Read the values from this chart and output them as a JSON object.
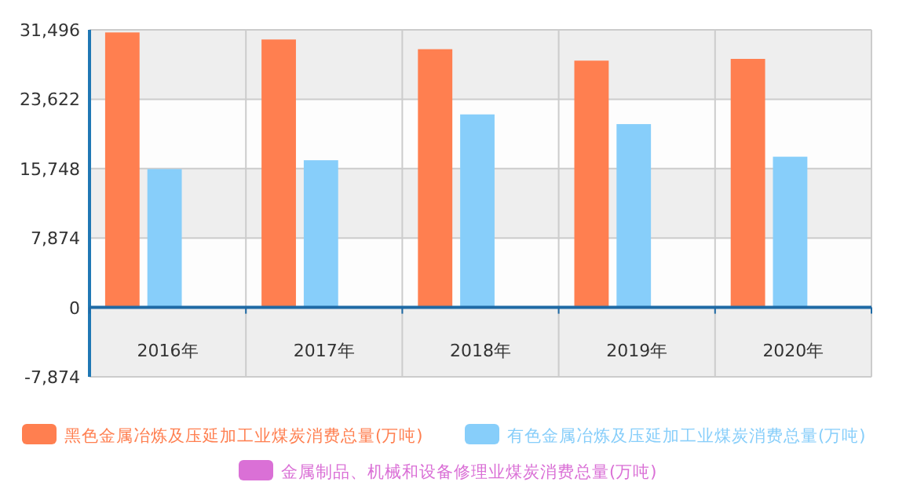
{
  "chart_data": {
    "type": "bar",
    "categories": [
      "2016年",
      "2017年",
      "2018年",
      "2019年",
      "2020年"
    ],
    "series": [
      {
        "name": "黑色金属冶炼及压延加工业煤炭消费总量(万吨)",
        "color": "#ff7f50",
        "values": [
          31200,
          30400,
          29300,
          28000,
          28200
        ]
      },
      {
        "name": "有色金属冶炼及压延加工业煤炭消费总量(万吨)",
        "color": "#87cefa",
        "values": [
          15700,
          16700,
          21900,
          20800,
          17100
        ]
      },
      {
        "name": "金属制品、机械和设备修理业煤炭消费总量(万吨)",
        "color": "#da70d6",
        "values": [
          null,
          null,
          null,
          null,
          null
        ]
      }
    ],
    "ylim": [
      -7874,
      31496
    ],
    "yticks": [
      {
        "value": -7874,
        "label": "-7,874"
      },
      {
        "value": 0,
        "label": "0"
      },
      {
        "value": 7874,
        "label": "7,874"
      },
      {
        "value": 15748,
        "label": "15,748"
      },
      {
        "value": 23622,
        "label": "23,622"
      },
      {
        "value": 31496,
        "label": "31,496"
      }
    ],
    "ref_lines": [
      {
        "axis": "y",
        "value": 0,
        "color": "#1f6aa5"
      }
    ],
    "grid": true,
    "legend": "bottom"
  }
}
